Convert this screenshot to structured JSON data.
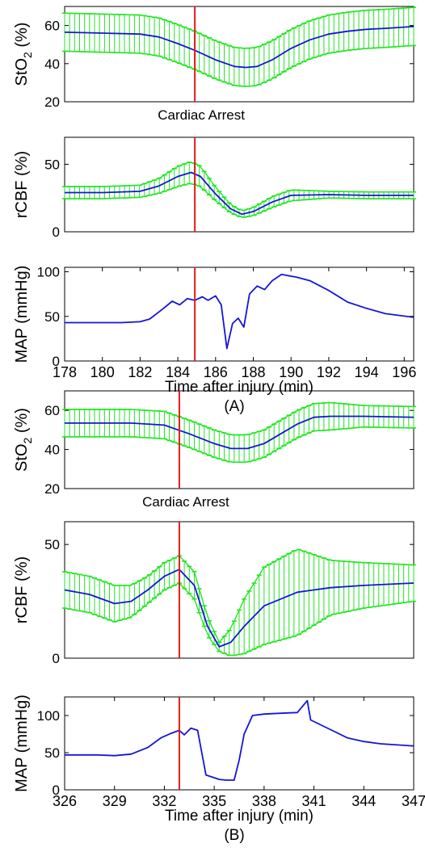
{
  "chart_data": [
    {
      "type": "line",
      "panel": "A",
      "ylabel": "StO2 (%)",
      "ylabel_main": "StO",
      "ylabel_sub": "2",
      "ylabel_suffix": " (%)",
      "ylim": [
        20,
        70
      ],
      "yticks": [
        "20",
        "40",
        "60"
      ],
      "xlim": [
        178,
        196.5
      ],
      "event_x": 184.9,
      "annotation": "Cardiac Arrest",
      "series": [
        {
          "x": [
            178,
            180,
            182,
            183,
            184,
            184.9,
            186,
            187,
            187.6,
            188.2,
            189,
            190,
            191,
            192,
            193,
            194,
            195,
            196.5
          ],
          "y": [
            56.5,
            56,
            55.5,
            54,
            50.5,
            47,
            42,
            38.5,
            38,
            38.5,
            42,
            48,
            52.5,
            55.5,
            57,
            58,
            58.5,
            59.5
          ],
          "err": [
            10,
            10,
            10,
            10,
            10,
            10,
            10,
            10,
            10,
            10,
            10,
            10,
            10,
            10,
            10,
            10,
            10,
            10
          ]
        }
      ]
    },
    {
      "type": "line",
      "panel": "A",
      "ylabel": "rCBF (%)",
      "ylim": [
        0,
        70
      ],
      "yticks": [
        "0",
        "50"
      ],
      "xlim": [
        178,
        196.5
      ],
      "event_x": 184.9,
      "series": [
        {
          "x": [
            178,
            180,
            182,
            183,
            184,
            184.7,
            185.2,
            186,
            186.8,
            187.4,
            188,
            189,
            190,
            192,
            194,
            196.5
          ],
          "y": [
            29,
            29,
            30,
            34,
            41,
            44,
            41,
            28,
            17,
            13,
            15,
            22,
            27,
            27.5,
            27,
            27
          ],
          "err": [
            4.5,
            4.5,
            4.5,
            5.5,
            7.5,
            8,
            7.5,
            5,
            3,
            2.5,
            3,
            4,
            4,
            2.5,
            2.5,
            2.5
          ]
        }
      ]
    },
    {
      "type": "line",
      "panel": "A",
      "ylabel": "MAP (mmHg)",
      "ylim": [
        0,
        105
      ],
      "yticks": [
        "0",
        "50",
        "100"
      ],
      "xlim": [
        178,
        196.5
      ],
      "xticks": [
        "178",
        "180",
        "182",
        "184",
        "186",
        "188",
        "190",
        "192",
        "194",
        "196"
      ],
      "xlabel": "Time after injury (min)",
      "event_x": 184.9,
      "series": [
        {
          "x": [
            178,
            179,
            180,
            181,
            182,
            182.5,
            183,
            183.3,
            183.7,
            184.1,
            184.5,
            184.9,
            185.3,
            185.6,
            186,
            186.3,
            186.6,
            186.9,
            187.2,
            187.5,
            187.8,
            188.2,
            188.6,
            189,
            189.5,
            190,
            190.3,
            191,
            192,
            193,
            194,
            195,
            196.5
          ],
          "y": [
            43,
            43,
            43,
            43,
            44,
            47,
            55,
            60,
            67,
            63,
            70,
            68,
            72,
            68,
            73,
            63,
            14,
            42,
            48,
            38,
            75,
            84,
            80,
            90,
            97,
            95,
            94,
            90,
            79,
            66,
            59,
            53,
            49
          ]
        }
      ],
      "caption": "(A)"
    },
    {
      "type": "line",
      "panel": "B",
      "ylabel": "StO2 (%)",
      "ylabel_main": "StO",
      "ylabel_sub": "2",
      "ylabel_suffix": " (%)",
      "ylim": [
        20,
        70
      ],
      "yticks": [
        "20",
        "40",
        "60"
      ],
      "xlim": [
        326,
        347
      ],
      "event_x": 332.9,
      "annotation": "Cardiac Arrest",
      "series": [
        {
          "x": [
            326,
            328,
            330,
            332,
            333.5,
            335,
            336,
            337,
            338,
            339,
            340,
            341,
            342,
            344,
            347
          ],
          "y": [
            53.5,
            53.5,
            53.5,
            52.5,
            48,
            43,
            40.5,
            40.5,
            43,
            48,
            53,
            56.5,
            57,
            57,
            56.5
          ],
          "err": [
            7,
            7,
            7,
            7,
            7,
            7,
            7,
            7,
            7,
            7,
            7,
            7,
            7,
            5.5,
            5.5
          ]
        }
      ]
    },
    {
      "type": "line",
      "panel": "B",
      "ylabel": "rCBF (%)",
      "ylim": [
        0,
        60
      ],
      "yticks": [
        "0",
        "50"
      ],
      "xlim": [
        326,
        347
      ],
      "event_x": 332.9,
      "series": [
        {
          "x": [
            326,
            327.5,
            329,
            330,
            331,
            332,
            332.9,
            333.8,
            334.6,
            335.3,
            336,
            336.8,
            338,
            340,
            342,
            344,
            347
          ],
          "y": [
            30,
            28,
            24,
            25,
            30,
            36,
            39,
            32,
            14,
            5,
            7,
            14,
            23,
            29,
            31,
            32,
            33
          ],
          "err": [
            8,
            8,
            8,
            7,
            6,
            6,
            6,
            6,
            4,
            2,
            6,
            12,
            17,
            19,
            12,
            10,
            8
          ]
        }
      ]
    },
    {
      "type": "line",
      "panel": "B",
      "ylabel": "MAP (mmHg)",
      "ylim": [
        0,
        125
      ],
      "yticks": [
        "0",
        "50",
        "100"
      ],
      "xlim": [
        326,
        347
      ],
      "xticks": [
        "326",
        "329",
        "332",
        "335",
        "338",
        "341",
        "344",
        "347"
      ],
      "xlabel": "Time after injury (min)",
      "event_x": 332.9,
      "series": [
        {
          "x": [
            326,
            327,
            328,
            329,
            330,
            331,
            331.8,
            332.4,
            332.9,
            333.2,
            333.6,
            334,
            334.5,
            335.3,
            335.7,
            336.2,
            336.5,
            336.8,
            337.3,
            338,
            339,
            340,
            340.6,
            340.8,
            342,
            343,
            344,
            345,
            347
          ],
          "y": [
            47,
            47,
            47,
            46,
            48,
            57,
            70,
            76,
            80,
            74,
            83,
            80,
            20,
            14,
            13,
            13,
            40,
            75,
            100,
            102,
            103,
            104,
            120,
            94,
            81,
            70,
            65,
            62,
            59
          ]
        }
      ],
      "caption": "(B)"
    }
  ]
}
